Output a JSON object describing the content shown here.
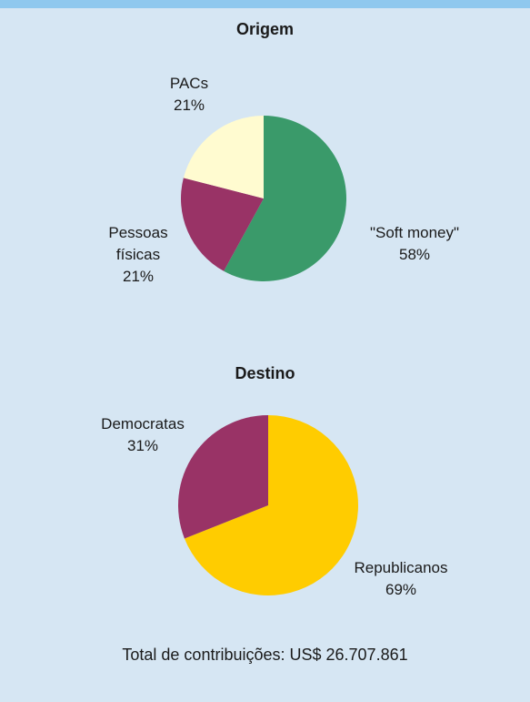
{
  "colors": {
    "soft_money": "#3a9a6a",
    "pessoas_fisicas": "#993366",
    "pacs": "#fffbd0",
    "republicanos": "#ffcc00",
    "democratas": "#993366",
    "background": "#d6e6f3",
    "top_bar": "#8fc8ee"
  },
  "chart_data": [
    {
      "type": "pie",
      "title": "Origem",
      "slices": [
        {
          "label": "\"Soft money\"",
          "value": 58,
          "value_label": "58%",
          "color": "#3a9a6a"
        },
        {
          "label": "Pessoas físicas",
          "label_lines": [
            "Pessoas",
            "físicas"
          ],
          "value": 21,
          "value_label": "21%",
          "color": "#993366"
        },
        {
          "label": "PACs",
          "value": 21,
          "value_label": "21%",
          "color": "#fffbd0"
        }
      ]
    },
    {
      "type": "pie",
      "title": "Destino",
      "slices": [
        {
          "label": "Republicanos",
          "value": 69,
          "value_label": "69%",
          "color": "#ffcc00"
        },
        {
          "label": "Democratas",
          "value": 31,
          "value_label": "31%",
          "color": "#993366"
        }
      ]
    }
  ],
  "footer": {
    "total_text": "Total de contribuições: US$ 26.707.861"
  }
}
